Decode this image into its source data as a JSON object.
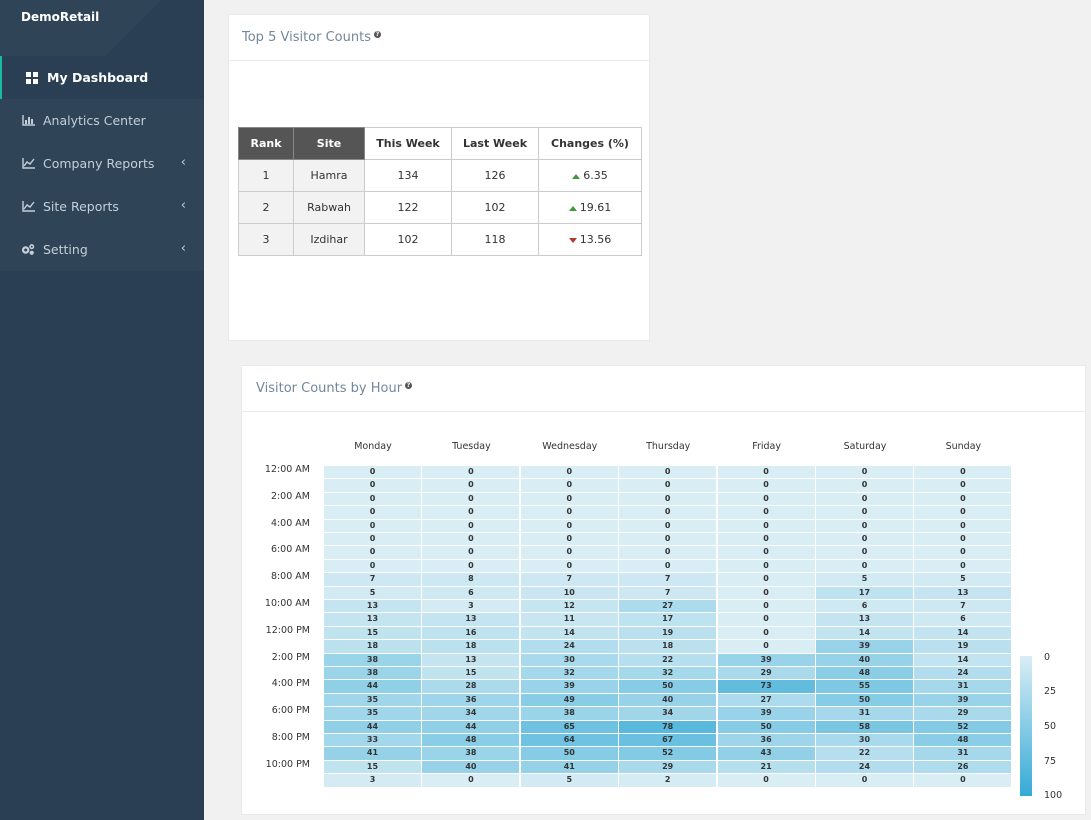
{
  "sidebar": {
    "brand": "DemoRetail",
    "items": [
      {
        "label": "My Dashboard",
        "icon": "grid-icon",
        "active": true,
        "has_submenu": false
      },
      {
        "label": "Analytics Center",
        "icon": "bar-chart-icon",
        "active": false,
        "has_submenu": false
      },
      {
        "label": "Company Reports",
        "icon": "line-chart-icon",
        "active": false,
        "has_submenu": true
      },
      {
        "label": "Site Reports",
        "icon": "line-chart-icon",
        "active": false,
        "has_submenu": true
      },
      {
        "label": "Setting",
        "icon": "gears-icon",
        "active": false,
        "has_submenu": true
      }
    ]
  },
  "top5": {
    "title": "Top 5 Visitor Counts",
    "headers": [
      "Rank",
      "Site",
      "This Week",
      "Last Week",
      "Changes (%)"
    ],
    "rows": [
      {
        "rank": "1",
        "site": "Hamra",
        "this_week": "134",
        "last_week": "126",
        "change": "6.35",
        "direction": "up"
      },
      {
        "rank": "2",
        "site": "Rabwah",
        "this_week": "122",
        "last_week": "102",
        "change": "19.61",
        "direction": "up"
      },
      {
        "rank": "3",
        "site": "Izdihar",
        "this_week": "102",
        "last_week": "118",
        "change": "13.56",
        "direction": "down"
      }
    ]
  },
  "heatmap": {
    "title": "Visitor Counts by Hour",
    "legend": [
      "0",
      "25",
      "50",
      "75",
      "100"
    ],
    "colors": {
      "low": "#d9edf5",
      "high": "#34aad6"
    }
  },
  "chart_data": {
    "type": "heatmap",
    "title": "Visitor Counts by Hour",
    "x": [
      "Monday",
      "Tuesday",
      "Wednesday",
      "Thursday",
      "Friday",
      "Saturday",
      "Sunday"
    ],
    "y_tick_labels": [
      "12:00 AM",
      "2:00 AM",
      "4:00 AM",
      "6:00 AM",
      "8:00 AM",
      "10:00 AM",
      "12:00 PM",
      "2:00 PM",
      "4:00 PM",
      "6:00 PM",
      "8:00 PM",
      "10:00 PM"
    ],
    "color_range": [
      0,
      100
    ],
    "values": [
      [
        0,
        0,
        0,
        0,
        0,
        0,
        0
      ],
      [
        0,
        0,
        0,
        0,
        0,
        0,
        0
      ],
      [
        0,
        0,
        0,
        0,
        0,
        0,
        0
      ],
      [
        0,
        0,
        0,
        0,
        0,
        0,
        0
      ],
      [
        0,
        0,
        0,
        0,
        0,
        0,
        0
      ],
      [
        0,
        0,
        0,
        0,
        0,
        0,
        0
      ],
      [
        0,
        0,
        0,
        0,
        0,
        0,
        0
      ],
      [
        0,
        0,
        0,
        0,
        0,
        0,
        0
      ],
      [
        7,
        8,
        7,
        7,
        0,
        5,
        5
      ],
      [
        5,
        6,
        10,
        7,
        0,
        17,
        13
      ],
      [
        13,
        3,
        12,
        27,
        0,
        6,
        7
      ],
      [
        13,
        13,
        11,
        17,
        0,
        13,
        6
      ],
      [
        15,
        16,
        14,
        19,
        0,
        14,
        14
      ],
      [
        18,
        18,
        24,
        18,
        0,
        39,
        19
      ],
      [
        38,
        13,
        30,
        22,
        39,
        40,
        14
      ],
      [
        38,
        15,
        32,
        32,
        29,
        48,
        24
      ],
      [
        44,
        28,
        39,
        50,
        73,
        55,
        31
      ],
      [
        35,
        36,
        49,
        40,
        27,
        50,
        39
      ],
      [
        35,
        34,
        38,
        34,
        39,
        31,
        29
      ],
      [
        44,
        44,
        65,
        78,
        50,
        58,
        52
      ],
      [
        33,
        48,
        64,
        67,
        36,
        30,
        48
      ],
      [
        41,
        38,
        50,
        52,
        43,
        22,
        31
      ],
      [
        15,
        40,
        41,
        29,
        21,
        24,
        26
      ],
      [
        3,
        0,
        5,
        2,
        0,
        0,
        0
      ]
    ]
  }
}
